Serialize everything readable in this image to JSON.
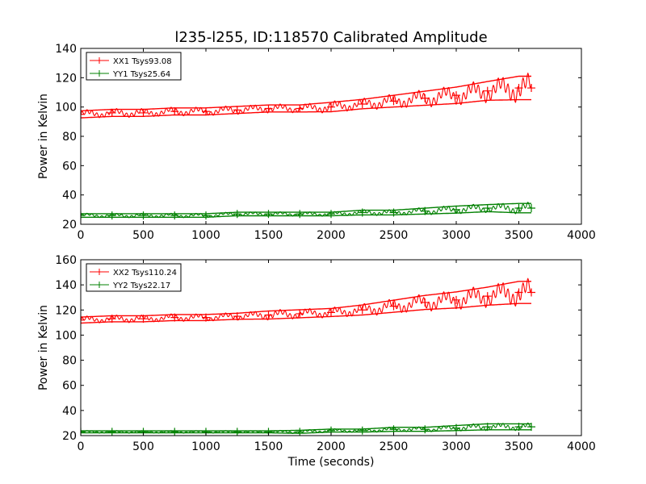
{
  "figure_title": "l235-l255, ID:118570 Calibrated Amplitude",
  "chart_data": [
    {
      "type": "scatter",
      "title": "l235-l255, ID:118570 Calibrated Amplitude",
      "xlabel": "",
      "ylabel": "Power in Kelvin",
      "xlim": [
        0,
        4000
      ],
      "ylim": [
        20,
        140
      ],
      "xticks": [
        "0",
        "500",
        "1000",
        "1500",
        "2000",
        "2500",
        "3000",
        "3500",
        "4000"
      ],
      "yticks": [
        "20",
        "40",
        "60",
        "80",
        "100",
        "120",
        "140"
      ],
      "grid": false,
      "legend_position": "top-left",
      "series": [
        {
          "name": "XX1 Tsys93.08",
          "color": "#ff0000",
          "x": [
            0,
            250,
            500,
            750,
            1000,
            1250,
            1500,
            1750,
            2000,
            2250,
            2500,
            2750,
            3000,
            3250,
            3500,
            3600
          ],
          "y": [
            95,
            96,
            96,
            97,
            97,
            98,
            99,
            99,
            100,
            102,
            104,
            106,
            108,
            111,
            113,
            113
          ],
          "spread": [
            3,
            3,
            3,
            3,
            3,
            3,
            3,
            3,
            4,
            4,
            5,
            6,
            7,
            8,
            10,
            10
          ]
        },
        {
          "name": "YY1 Tsys25.64",
          "color": "#008000",
          "x": [
            0,
            250,
            500,
            750,
            1000,
            1250,
            1500,
            1750,
            2000,
            2250,
            2500,
            2750,
            3000,
            3250,
            3500,
            3600
          ],
          "y": [
            26,
            26,
            26,
            26,
            26,
            27,
            27,
            27,
            27,
            28,
            28,
            29,
            30,
            31,
            31,
            31
          ],
          "spread": [
            1.5,
            1.5,
            1.5,
            1.5,
            1.5,
            1.5,
            1.5,
            1.5,
            1.5,
            2,
            2,
            2.5,
            3,
            3,
            4,
            4
          ]
        }
      ]
    },
    {
      "type": "scatter",
      "title": "",
      "xlabel": "Time (seconds)",
      "ylabel": "Power in Kelvin",
      "xlim": [
        0,
        4000
      ],
      "ylim": [
        20,
        160
      ],
      "xticks": [
        "0",
        "500",
        "1000",
        "1500",
        "2000",
        "2500",
        "3000",
        "3500",
        "4000"
      ],
      "yticks": [
        "20",
        "40",
        "60",
        "80",
        "100",
        "120",
        "140",
        "160"
      ],
      "grid": false,
      "legend_position": "top-left",
      "series": [
        {
          "name": "XX2 Tsys110.24",
          "color": "#ff0000",
          "x": [
            0,
            250,
            500,
            750,
            1000,
            1250,
            1500,
            1750,
            2000,
            2250,
            2500,
            2750,
            3000,
            3250,
            3500,
            3600
          ],
          "y": [
            112,
            113,
            113,
            114,
            114,
            115,
            116,
            117,
            118,
            120,
            123,
            126,
            128,
            131,
            134,
            134
          ],
          "spread": [
            3,
            3,
            3,
            3,
            3,
            3,
            4,
            4,
            4,
            5,
            6,
            7,
            8,
            9,
            11,
            11
          ]
        },
        {
          "name": "YY2 Tsys22.17",
          "color": "#008000",
          "x": [
            0,
            250,
            500,
            750,
            1000,
            1250,
            1500,
            1750,
            2000,
            2250,
            2500,
            2750,
            3000,
            3250,
            3500,
            3600
          ],
          "y": [
            23,
            23,
            23,
            23,
            23,
            23,
            23,
            23,
            24,
            24,
            25,
            25,
            26,
            27,
            27,
            27
          ],
          "spread": [
            1,
            1,
            1,
            1,
            1,
            1,
            1,
            1.5,
            1.5,
            1.5,
            2,
            2,
            2.5,
            3,
            3,
            3
          ]
        }
      ]
    }
  ]
}
